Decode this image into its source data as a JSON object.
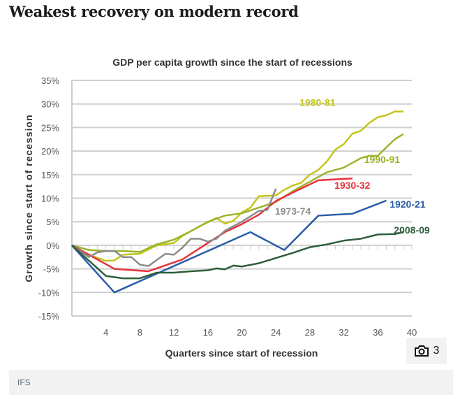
{
  "headline": "Weakest recovery on modern record",
  "source": "IFS",
  "gallery": {
    "icon": "camera-icon",
    "count": "3"
  },
  "chart_data": {
    "type": "line",
    "title": "GDP per capita growth since the start of recessions",
    "xlabel": "Quarters since start of recession",
    "ylabel": "Growth since start of recession",
    "xlim": [
      0,
      40
    ],
    "ylim": [
      -15,
      35
    ],
    "xticks": [
      4,
      8,
      12,
      16,
      20,
      24,
      28,
      32,
      36,
      40
    ],
    "yticks": [
      -15,
      -10,
      -5,
      0,
      5,
      10,
      15,
      20,
      25,
      30,
      35
    ],
    "ytick_labels": [
      "-15%",
      "-10%",
      "-5%",
      "0%",
      "5%",
      "10%",
      "15%",
      "20%",
      "25%",
      "30%",
      "35%"
    ],
    "grid": true,
    "series": [
      {
        "name": "1980-81",
        "color": "#c4c41c",
        "points": [
          [
            0,
            0
          ],
          [
            2,
            -2
          ],
          [
            4,
            -3.3
          ],
          [
            5,
            -3.2
          ],
          [
            6,
            -2
          ],
          [
            8,
            -1.8
          ],
          [
            10,
            0
          ],
          [
            12,
            0.5
          ],
          [
            13,
            2
          ],
          [
            15,
            4
          ],
          [
            17,
            5.8
          ],
          [
            18,
            4.6
          ],
          [
            19,
            5.2
          ],
          [
            20,
            7
          ],
          [
            21,
            8
          ],
          [
            22,
            10.4
          ],
          [
            23,
            10.5
          ],
          [
            24,
            10.6
          ],
          [
            25,
            11.8
          ],
          [
            26,
            12.7
          ],
          [
            27,
            13.3
          ],
          [
            28,
            15
          ],
          [
            29,
            16
          ],
          [
            30,
            17.8
          ],
          [
            31,
            20.3
          ],
          [
            32,
            21.5
          ],
          [
            33,
            23.7
          ],
          [
            34,
            24.3
          ],
          [
            35,
            26
          ],
          [
            36,
            27.2
          ],
          [
            37,
            27.6
          ],
          [
            38,
            28.4
          ],
          [
            39,
            28.4
          ]
        ]
      },
      {
        "name": "1990-91",
        "color": "#9ab52a",
        "points": [
          [
            0,
            0
          ],
          [
            2,
            -1
          ],
          [
            4,
            -1.2
          ],
          [
            6,
            -1.2
          ],
          [
            8,
            -1.4
          ],
          [
            10,
            0.2
          ],
          [
            12,
            1.2
          ],
          [
            14,
            3
          ],
          [
            16,
            5
          ],
          [
            18,
            6.3
          ],
          [
            20,
            6.8
          ],
          [
            22,
            8
          ],
          [
            24,
            9.2
          ],
          [
            26,
            11.5
          ],
          [
            28,
            13.5
          ],
          [
            30,
            15.5
          ],
          [
            32,
            16.5
          ],
          [
            34,
            18.5
          ],
          [
            35,
            19
          ],
          [
            36,
            19
          ],
          [
            37,
            20.8
          ],
          [
            38,
            22.5
          ],
          [
            39,
            23.6
          ]
        ]
      },
      {
        "name": "1930-32",
        "color": "#e8323c",
        "points": [
          [
            0,
            0
          ],
          [
            5,
            -5
          ],
          [
            9,
            -5.5
          ],
          [
            13,
            -3
          ],
          [
            16,
            0.5
          ],
          [
            18,
            2.8
          ],
          [
            20,
            4.5
          ],
          [
            22,
            6.5
          ],
          [
            24,
            9.4
          ],
          [
            26,
            11.2
          ],
          [
            29,
            13.8
          ],
          [
            33,
            14.2
          ]
        ]
      },
      {
        "name": "1973-74",
        "color": "#8c8c8c",
        "points": [
          [
            0,
            0
          ],
          [
            2,
            -2.5
          ],
          [
            3,
            -1.5
          ],
          [
            4,
            -1.2
          ],
          [
            5,
            -1.2
          ],
          [
            6,
            -2.5
          ],
          [
            7,
            -2.5
          ],
          [
            8,
            -4.1
          ],
          [
            9,
            -4.4
          ],
          [
            11,
            -1.8
          ],
          [
            12,
            -2
          ],
          [
            13,
            -0.5
          ],
          [
            14,
            1.4
          ],
          [
            15,
            1.4
          ],
          [
            16,
            0.8
          ],
          [
            17,
            1.4
          ],
          [
            18,
            3.1
          ],
          [
            20,
            5
          ],
          [
            22,
            7.3
          ],
          [
            23,
            7.5
          ],
          [
            24,
            12
          ]
        ]
      },
      {
        "name": "1920-21",
        "color": "#2a5da8",
        "points": [
          [
            0,
            0
          ],
          [
            5,
            -10
          ],
          [
            21,
            2.8
          ],
          [
            25,
            -1
          ],
          [
            29,
            6.3
          ],
          [
            33,
            6.7
          ],
          [
            37,
            9.5
          ]
        ]
      },
      {
        "name": "2008-09",
        "color": "#2e5e3a",
        "points": [
          [
            0,
            0
          ],
          [
            4,
            -6.5
          ],
          [
            6,
            -7
          ],
          [
            8,
            -7
          ],
          [
            10,
            -5.8
          ],
          [
            12,
            -5.8
          ],
          [
            14,
            -5.5
          ],
          [
            16,
            -5.3
          ],
          [
            17,
            -4.9
          ],
          [
            18,
            -5.1
          ],
          [
            19,
            -4.3
          ],
          [
            20,
            -4.5
          ],
          [
            22,
            -3.8
          ],
          [
            24,
            -2.7
          ],
          [
            26,
            -1.6
          ],
          [
            28,
            -0.4
          ],
          [
            30,
            0.2
          ],
          [
            32,
            1
          ],
          [
            34,
            1.4
          ],
          [
            36,
            2.3
          ],
          [
            38,
            2.4
          ],
          [
            39,
            2.8
          ]
        ]
      }
    ]
  }
}
